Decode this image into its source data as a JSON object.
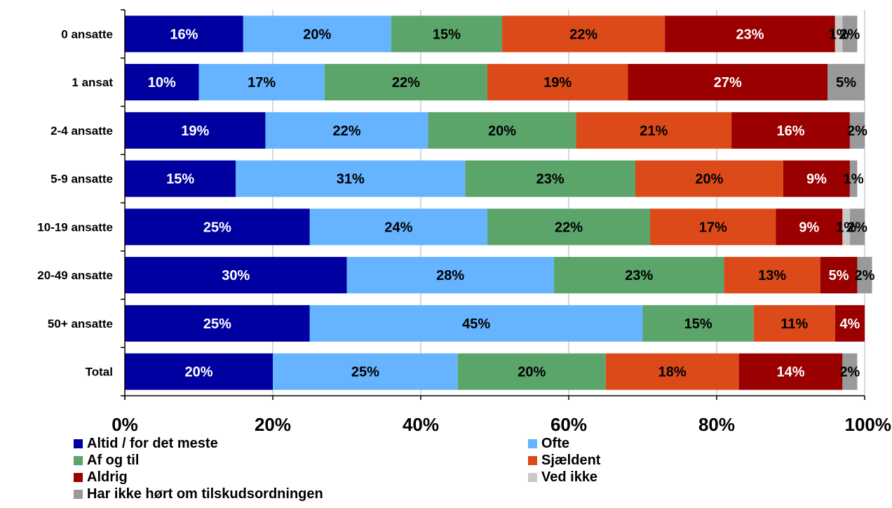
{
  "chart_data": {
    "type": "bar",
    "orientation": "horizontal",
    "stacked": true,
    "percent_stacked": true,
    "categories": [
      "0 ansatte",
      "1 ansat",
      "2-4 ansatte",
      "5-9 ansatte",
      "10-19 ansatte",
      "20-49 ansatte",
      "50+ ansatte",
      "Total"
    ],
    "series": [
      {
        "name": "Altid / for det meste",
        "color": "#0000A0",
        "label_color": "#ffffff",
        "values": [
          16,
          10,
          19,
          15,
          25,
          30,
          25,
          20
        ],
        "labels": [
          "16%",
          "10%",
          "19%",
          "15%",
          "25%",
          "30%",
          "25%",
          "20%"
        ]
      },
      {
        "name": "Ofte",
        "color": "#66B3FF",
        "label_color": "#000000",
        "values": [
          20,
          17,
          22,
          31,
          24,
          28,
          45,
          25
        ],
        "labels": [
          "20%",
          "17%",
          "22%",
          "31%",
          "24%",
          "28%",
          "45%",
          "25%"
        ]
      },
      {
        "name": "Af og til",
        "color": "#5BA56B",
        "label_color": "#000000",
        "values": [
          15,
          22,
          20,
          23,
          22,
          23,
          15,
          20
        ],
        "labels": [
          "15%",
          "22%",
          "20%",
          "23%",
          "22%",
          "23%",
          "15%",
          "20%"
        ]
      },
      {
        "name": "Sjældent",
        "color": "#DC4A1A",
        "label_color": "#000000",
        "values": [
          22,
          19,
          21,
          20,
          17,
          13,
          11,
          18
        ],
        "labels": [
          "22%",
          "19%",
          "21%",
          "20%",
          "17%",
          "13%",
          "11%",
          "18%"
        ]
      },
      {
        "name": "Aldrig",
        "color": "#9A0000",
        "label_color": "#ffffff",
        "values": [
          23,
          27,
          16,
          9,
          9,
          5,
          4,
          14
        ],
        "labels": [
          "23%",
          "27%",
          "16%",
          "9%",
          "9%",
          "5%",
          "4%",
          "14%"
        ]
      },
      {
        "name": "Ved ikke",
        "color": "#C8C8C8",
        "label_color": "#000000",
        "values": [
          1,
          0,
          0,
          0,
          1,
          0,
          0,
          0
        ],
        "labels": [
          "1%",
          "",
          "",
          "",
          "1%",
          "",
          "",
          ""
        ]
      },
      {
        "name": "Har ikke hørt om tilskudsordningen",
        "color": "#999999",
        "label_color": "#000000",
        "values": [
          2,
          5,
          2,
          1,
          2,
          2,
          0,
          2
        ],
        "labels": [
          "2%",
          "5%",
          "2%",
          "1%",
          "2%",
          "2%",
          "",
          "2%"
        ]
      }
    ],
    "x_ticks": [
      "0%",
      "20%",
      "40%",
      "60%",
      "80%",
      "100%"
    ],
    "xlim": [
      0,
      100
    ],
    "grid": "vertical",
    "legend_position": "bottom",
    "title": "",
    "xlabel": "",
    "ylabel": ""
  }
}
